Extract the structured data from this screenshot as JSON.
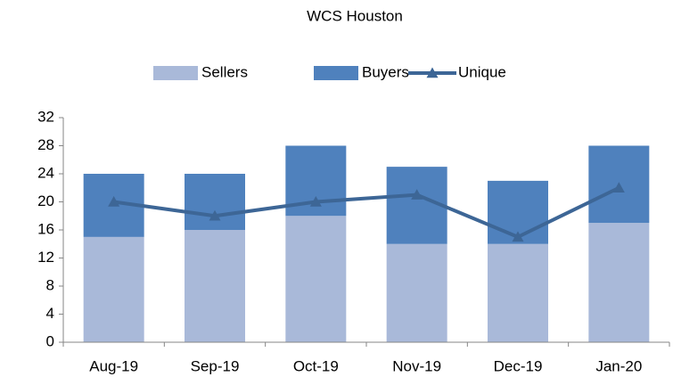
{
  "chart_data": {
    "type": "bar",
    "title": "WCS Houston",
    "stacked": true,
    "categories": [
      "Aug-19",
      "Sep-19",
      "Oct-19",
      "Nov-19",
      "Dec-19",
      "Jan-20"
    ],
    "series": [
      {
        "name": "Sellers",
        "color": "#a9b9d9",
        "values": [
          15,
          16,
          18,
          14,
          14,
          17
        ]
      },
      {
        "name": "Buyers",
        "color": "#4f81bd",
        "values": [
          9,
          8,
          10,
          11,
          9,
          11
        ]
      },
      {
        "name": "Unique",
        "type": "line",
        "color": "#3d6696",
        "values": [
          20,
          18,
          20,
          21,
          15,
          22
        ]
      }
    ],
    "ylim": [
      0,
      32
    ],
    "yticks": [
      0,
      4,
      8,
      12,
      16,
      20,
      24,
      28,
      32
    ],
    "grid": false,
    "legend": "top"
  }
}
